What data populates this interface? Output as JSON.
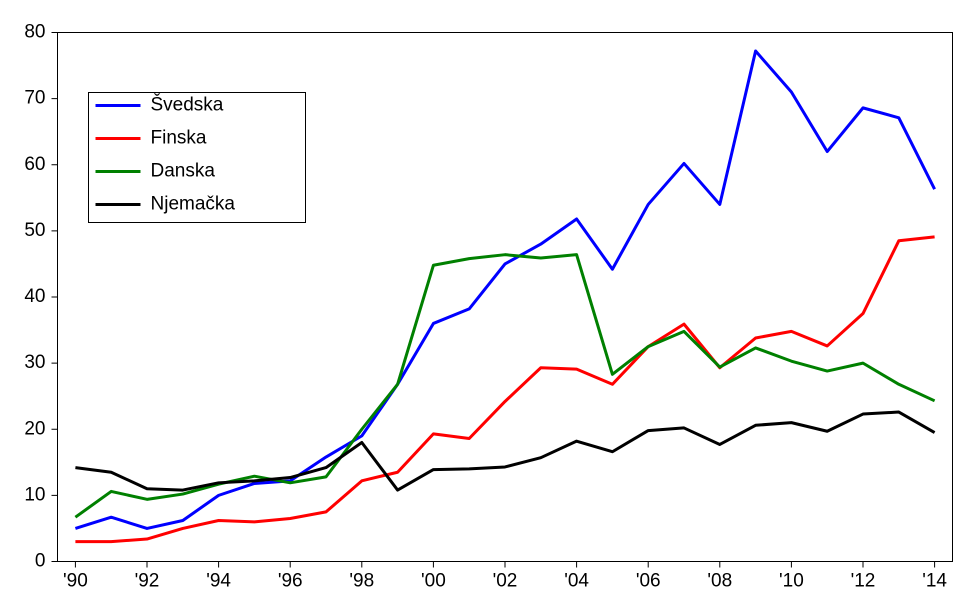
{
  "chart_data": {
    "type": "line",
    "x": [
      1990,
      1991,
      1992,
      1993,
      1994,
      1995,
      1996,
      1997,
      1998,
      1999,
      2000,
      2001,
      2002,
      2003,
      2004,
      2005,
      2006,
      2007,
      2008,
      2009,
      2010,
      2011,
      2012,
      2013,
      2014
    ],
    "series": [
      {
        "name": "Švedska",
        "color": "#0000ff",
        "values": [
          5.0,
          6.7,
          5.0,
          6.2,
          10.0,
          11.8,
          12.2,
          15.8,
          19.0,
          26.8,
          36.0,
          38.2,
          45.0,
          48.0,
          51.8,
          44.2,
          54.0,
          60.2,
          54.0,
          77.2,
          71.0,
          62.0,
          68.6,
          67.1,
          56.3
        ]
      },
      {
        "name": "Finska",
        "color": "#ff0000",
        "values": [
          3.0,
          3.0,
          3.4,
          5.0,
          6.2,
          6.0,
          6.5,
          7.5,
          12.2,
          13.5,
          19.3,
          18.6,
          24.2,
          29.3,
          29.1,
          26.8,
          32.5,
          35.9,
          29.3,
          33.8,
          34.8,
          32.6,
          37.5,
          48.5,
          49.1
        ]
      },
      {
        "name": "Danska",
        "color": "#008000",
        "values": [
          6.7,
          10.6,
          9.4,
          10.2,
          11.7,
          12.9,
          11.9,
          12.8,
          20.0,
          26.8,
          44.8,
          45.8,
          46.4,
          45.9,
          46.4,
          28.3,
          32.5,
          34.8,
          29.4,
          32.3,
          30.3,
          28.8,
          30.0,
          26.8,
          24.3
        ]
      },
      {
        "name": "Njemačka",
        "color": "#000000",
        "values": [
          14.2,
          13.5,
          11.0,
          10.8,
          11.9,
          12.2,
          12.7,
          14.2,
          18.0,
          10.8,
          13.9,
          14.0,
          14.3,
          15.7,
          18.2,
          16.6,
          19.8,
          20.2,
          17.7,
          20.6,
          21.0,
          19.7,
          22.3,
          22.6,
          19.5
        ]
      }
    ],
    "xlim": [
      1989.5,
      2014.5
    ],
    "xticks": [
      {
        "value": 1990,
        "label": "'90"
      },
      {
        "value": 1992,
        "label": "'92"
      },
      {
        "value": 1994,
        "label": "'94"
      },
      {
        "value": 1996,
        "label": "'96"
      },
      {
        "value": 1998,
        "label": "'98"
      },
      {
        "value": 2000,
        "label": "'00"
      },
      {
        "value": 2002,
        "label": "'02"
      },
      {
        "value": 2004,
        "label": "'04"
      },
      {
        "value": 2006,
        "label": "'06"
      },
      {
        "value": 2008,
        "label": "'08"
      },
      {
        "value": 2010,
        "label": "'10"
      },
      {
        "value": 2012,
        "label": "'12"
      },
      {
        "value": 2014,
        "label": "'14"
      }
    ],
    "ylim": [
      0,
      80
    ],
    "yticks": [
      0,
      10,
      20,
      30,
      40,
      50,
      60,
      70,
      80
    ],
    "grid": false,
    "legend": "upper left"
  }
}
